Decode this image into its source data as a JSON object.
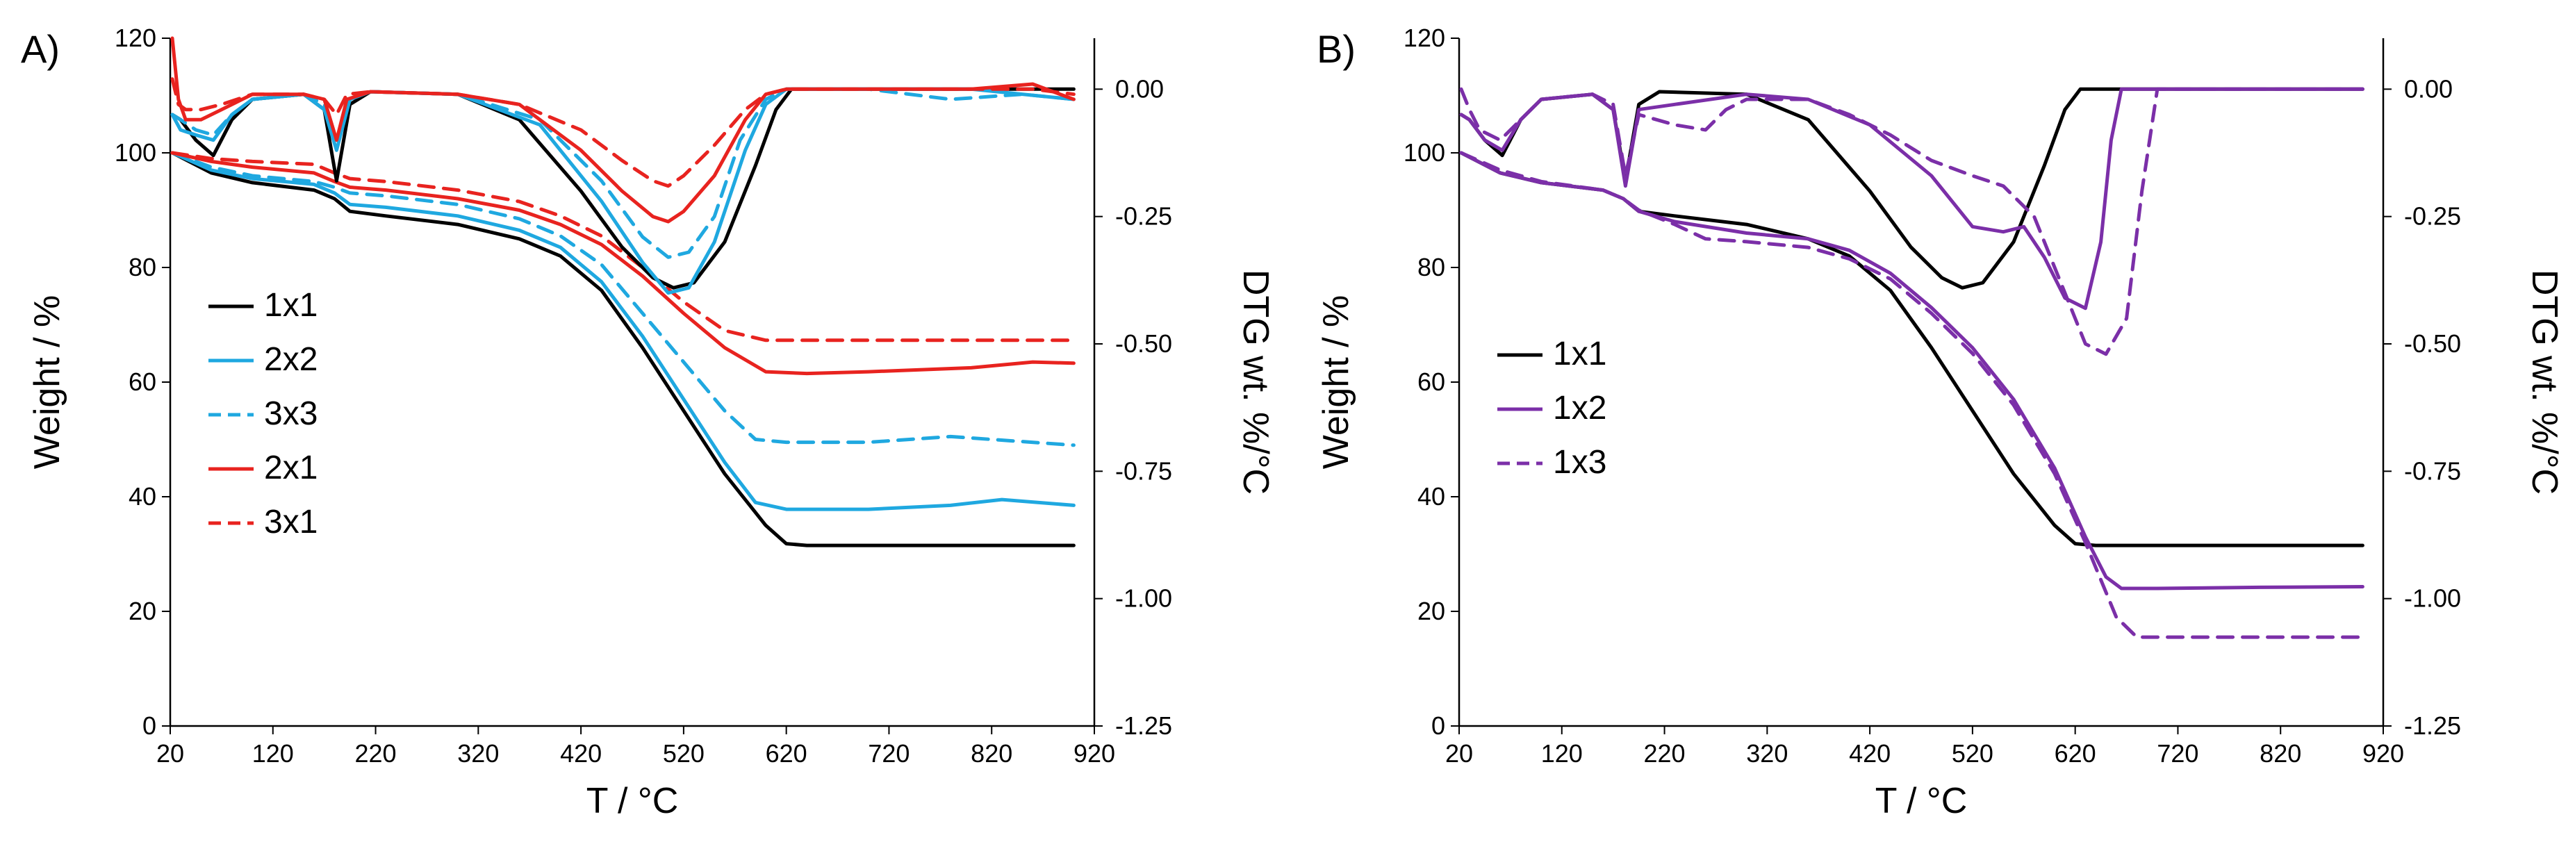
{
  "chart_data": [
    {
      "type": "line",
      "panel_label": "A)",
      "xlabel": "T / °C",
      "ylabel": "Weight / %",
      "y2label": "DTG wt. %/°C",
      "xlim": [
        20,
        920
      ],
      "ylim": [
        0,
        120
      ],
      "y2lim": [
        -1.25,
        0.1
      ],
      "xticks": [
        "20",
        "120",
        "220",
        "320",
        "420",
        "520",
        "620",
        "720",
        "820",
        "920"
      ],
      "yticks": [
        "0",
        "20",
        "40",
        "60",
        "80",
        "100",
        "120"
      ],
      "y2ticks": [
        "-1.25",
        "-1.00",
        "-0.75",
        "-0.50",
        "-0.25",
        "0.00"
      ],
      "legend": [
        "1x1",
        "2x2",
        "3x3",
        "2x1",
        "3x1"
      ],
      "series": [
        {
          "name": "1x1",
          "axis": "weight",
          "color": "#000000",
          "dash": "solid",
          "x": [
            22,
            60,
            100,
            160,
            180,
            195,
            230,
            300,
            360,
            400,
            440,
            480,
            520,
            560,
            600,
            620,
            640,
            700,
            800,
            900
          ],
          "y": [
            100,
            96.5,
            94.8,
            93.5,
            92,
            89.8,
            89,
            87.5,
            85,
            82,
            76,
            66,
            55,
            44,
            35,
            31.8,
            31.5,
            31.5,
            31.5,
            31.5
          ]
        },
        {
          "name": "2x2",
          "axis": "weight",
          "color": "#1fa8e0",
          "dash": "solid",
          "x": [
            22,
            60,
            100,
            160,
            180,
            195,
            230,
            300,
            360,
            400,
            440,
            480,
            520,
            560,
            590,
            620,
            700,
            780,
            830,
            900
          ],
          "y": [
            100,
            97,
            95.5,
            94.5,
            93,
            91,
            90.5,
            89,
            86.5,
            83.5,
            77.5,
            68,
            57,
            46,
            39,
            37.8,
            37.8,
            38.5,
            39.5,
            38.5
          ]
        },
        {
          "name": "3x3",
          "axis": "weight",
          "color": "#1fa8e0",
          "dash": "dash",
          "x": [
            22,
            60,
            100,
            160,
            180,
            195,
            230,
            300,
            360,
            400,
            440,
            480,
            520,
            560,
            590,
            620,
            700,
            780,
            900
          ],
          "y": [
            100,
            97.5,
            96,
            95,
            94,
            93,
            92.5,
            91,
            88.5,
            85.5,
            80.5,
            72,
            63.5,
            55,
            50,
            49.5,
            49.5,
            50.5,
            49
          ]
        },
        {
          "name": "2x1",
          "axis": "weight",
          "color": "#e8231f",
          "dash": "solid",
          "x": [
            22,
            60,
            100,
            160,
            180,
            195,
            230,
            300,
            360,
            400,
            440,
            480,
            520,
            560,
            600,
            640,
            700,
            800,
            860,
            900
          ],
          "y": [
            100,
            98.5,
            97.5,
            96.5,
            95,
            94,
            93.5,
            92,
            90,
            87.5,
            84,
            78.5,
            72,
            66,
            61.8,
            61.5,
            61.8,
            62.5,
            63.5,
            63.3
          ]
        },
        {
          "name": "3x1",
          "axis": "weight",
          "color": "#e8231f",
          "dash": "dash",
          "x": [
            22,
            60,
            100,
            160,
            180,
            195,
            230,
            300,
            360,
            400,
            440,
            480,
            520,
            560,
            600,
            640,
            700,
            800,
            900
          ],
          "y": [
            100,
            99,
            98.5,
            98,
            96.5,
            95.5,
            95,
            93.5,
            91.5,
            89,
            85.5,
            80,
            74,
            69,
            67.3,
            67.3,
            67.3,
            67.3,
            67.3
          ]
        },
        {
          "name": "1x1",
          "axis": "dtg",
          "color": "#000000",
          "dash": "solid",
          "x": [
            22,
            30,
            45,
            62,
            80,
            100,
            150,
            170,
            182,
            195,
            215,
            300,
            360,
            420,
            460,
            490,
            510,
            530,
            560,
            590,
            610,
            625,
            700,
            800,
            900
          ],
          "y": [
            -0.05,
            -0.06,
            -0.1,
            -0.13,
            -0.06,
            -0.02,
            -0.01,
            -0.04,
            -0.18,
            -0.03,
            -0.005,
            -0.01,
            -0.06,
            -0.2,
            -0.31,
            -0.37,
            -0.39,
            -0.38,
            -0.3,
            -0.15,
            -0.04,
            0.0,
            0.0,
            0.0,
            0.0
          ]
        },
        {
          "name": "2x2",
          "axis": "dtg",
          "color": "#1fa8e0",
          "dash": "solid",
          "x": [
            22,
            30,
            45,
            62,
            80,
            100,
            150,
            170,
            182,
            195,
            215,
            300,
            380,
            440,
            480,
            505,
            525,
            550,
            580,
            600,
            620,
            700,
            800,
            900
          ],
          "y": [
            -0.05,
            -0.08,
            -0.09,
            -0.1,
            -0.05,
            -0.02,
            -0.01,
            -0.04,
            -0.12,
            -0.02,
            -0.005,
            -0.01,
            -0.07,
            -0.22,
            -0.34,
            -0.4,
            -0.39,
            -0.3,
            -0.12,
            -0.03,
            0.0,
            0.0,
            0.0,
            -0.02
          ]
        },
        {
          "name": "3x3",
          "axis": "dtg",
          "color": "#1fa8e0",
          "dash": "dash",
          "x": [
            22,
            30,
            45,
            62,
            80,
            100,
            150,
            170,
            182,
            195,
            215,
            300,
            380,
            440,
            480,
            505,
            525,
            550,
            575,
            600,
            620,
            700,
            780,
            850,
            900
          ],
          "y": [
            -0.05,
            -0.06,
            -0.08,
            -0.09,
            -0.05,
            -0.02,
            -0.01,
            -0.03,
            -0.1,
            -0.02,
            -0.005,
            -0.01,
            -0.06,
            -0.18,
            -0.29,
            -0.33,
            -0.32,
            -0.25,
            -0.1,
            -0.02,
            0.0,
            0.0,
            -0.02,
            -0.01,
            -0.02
          ]
        },
        {
          "name": "2x1",
          "axis": "dtg",
          "color": "#e8231f",
          "dash": "solid",
          "x": [
            22,
            28,
            35,
            50,
            70,
            100,
            150,
            170,
            182,
            192,
            215,
            300,
            360,
            420,
            460,
            490,
            505,
            520,
            550,
            580,
            600,
            620,
            700,
            800,
            860,
            900
          ],
          "y": [
            0.1,
            -0.02,
            -0.06,
            -0.06,
            -0.04,
            -0.01,
            -0.01,
            -0.02,
            -0.1,
            -0.02,
            -0.005,
            -0.01,
            -0.03,
            -0.12,
            -0.2,
            -0.25,
            -0.26,
            -0.24,
            -0.17,
            -0.06,
            -0.01,
            0.0,
            0.0,
            0.0,
            0.01,
            -0.02
          ]
        },
        {
          "name": "3x1",
          "axis": "dtg",
          "color": "#e8231f",
          "dash": "dash",
          "x": [
            22,
            28,
            35,
            50,
            70,
            100,
            150,
            170,
            182,
            192,
            215,
            300,
            360,
            420,
            460,
            490,
            505,
            520,
            550,
            580,
            600,
            620,
            700,
            800,
            860,
            900
          ],
          "y": [
            0.02,
            -0.03,
            -0.04,
            -0.04,
            -0.03,
            -0.01,
            -0.01,
            -0.02,
            -0.05,
            -0.01,
            -0.005,
            -0.01,
            -0.03,
            -0.08,
            -0.14,
            -0.18,
            -0.19,
            -0.17,
            -0.11,
            -0.04,
            -0.01,
            0.0,
            0.0,
            0.0,
            0.0,
            -0.01
          ]
        }
      ]
    },
    {
      "type": "line",
      "panel_label": "B)",
      "xlabel": "T / °C",
      "ylabel": "Weight / %",
      "y2label": "DTG wt. %/°C",
      "xlim": [
        20,
        920
      ],
      "ylim": [
        0,
        120
      ],
      "y2lim": [
        -1.25,
        0.1
      ],
      "xticks": [
        "20",
        "120",
        "220",
        "320",
        "420",
        "520",
        "620",
        "720",
        "820",
        "920"
      ],
      "yticks": [
        "0",
        "20",
        "40",
        "60",
        "80",
        "100",
        "120"
      ],
      "y2ticks": [
        "-1.25",
        "-1.00",
        "-0.75",
        "-0.50",
        "-0.25",
        "0.00"
      ],
      "legend": [
        "1x1",
        "1x2",
        "1x3"
      ],
      "series": [
        {
          "name": "1x1",
          "axis": "weight",
          "color": "#000000",
          "dash": "solid",
          "x": [
            22,
            60,
            100,
            160,
            180,
            195,
            230,
            300,
            360,
            400,
            440,
            480,
            520,
            560,
            600,
            620,
            640,
            700,
            800,
            900
          ],
          "y": [
            100,
            96.5,
            94.8,
            93.5,
            92,
            89.8,
            89,
            87.5,
            85,
            82,
            76,
            66,
            55,
            44,
            35,
            31.8,
            31.5,
            31.5,
            31.5,
            31.5
          ]
        },
        {
          "name": "1x2",
          "axis": "weight",
          "color": "#7b2fa8",
          "dash": "solid",
          "x": [
            22,
            60,
            100,
            160,
            180,
            195,
            230,
            300,
            360,
            400,
            440,
            480,
            520,
            560,
            600,
            630,
            650,
            665,
            700,
            800,
            900
          ],
          "y": [
            100,
            96.5,
            94.8,
            93.5,
            92,
            89.8,
            88,
            86,
            85,
            83,
            79,
            73,
            66,
            57,
            45,
            33,
            26,
            24,
            24,
            24.2,
            24.3
          ]
        },
        {
          "name": "1x3",
          "axis": "weight",
          "color": "#7b2fa8",
          "dash": "dash",
          "x": [
            22,
            60,
            100,
            160,
            180,
            195,
            230,
            260,
            300,
            360,
            400,
            440,
            480,
            520,
            560,
            600,
            630,
            660,
            680,
            700,
            800,
            900
          ],
          "y": [
            100,
            97,
            95,
            93.5,
            92,
            90,
            87.5,
            85,
            84.5,
            83.5,
            81.5,
            78,
            72,
            65,
            56,
            44,
            32,
            19,
            15.5,
            15.5,
            15.5,
            15.5
          ]
        },
        {
          "name": "1x1",
          "axis": "dtg",
          "color": "#000000",
          "dash": "solid",
          "x": [
            22,
            30,
            45,
            62,
            80,
            100,
            150,
            170,
            182,
            195,
            215,
            300,
            360,
            420,
            460,
            490,
            510,
            530,
            560,
            590,
            610,
            625,
            700,
            800,
            900
          ],
          "y": [
            -0.05,
            -0.06,
            -0.1,
            -0.13,
            -0.06,
            -0.02,
            -0.01,
            -0.04,
            -0.18,
            -0.03,
            -0.005,
            -0.01,
            -0.06,
            -0.2,
            -0.31,
            -0.37,
            -0.39,
            -0.38,
            -0.3,
            -0.15,
            -0.04,
            0.0,
            0.0,
            0.0,
            0.0
          ]
        },
        {
          "name": "1x2",
          "axis": "dtg",
          "color": "#7b2fa8",
          "dash": "solid",
          "x": [
            22,
            30,
            45,
            62,
            80,
            100,
            150,
            170,
            182,
            195,
            230,
            300,
            360,
            420,
            480,
            520,
            550,
            570,
            590,
            610,
            630,
            645,
            655,
            665,
            700,
            900
          ],
          "y": [
            -0.05,
            -0.06,
            -0.1,
            -0.12,
            -0.06,
            -0.02,
            -0.01,
            -0.04,
            -0.19,
            -0.04,
            -0.03,
            -0.01,
            -0.02,
            -0.07,
            -0.17,
            -0.27,
            -0.28,
            -0.27,
            -0.33,
            -0.41,
            -0.43,
            -0.3,
            -0.1,
            0.0,
            0.0,
            0.0
          ]
        },
        {
          "name": "1x3",
          "axis": "dtg",
          "color": "#7b2fa8",
          "dash": "dash",
          "x": [
            22,
            30,
            40,
            60,
            80,
            100,
            150,
            170,
            182,
            195,
            230,
            260,
            280,
            300,
            360,
            400,
            440,
            480,
            520,
            550,
            580,
            610,
            630,
            650,
            670,
            685,
            700,
            900
          ],
          "y": [
            0.0,
            -0.04,
            -0.08,
            -0.1,
            -0.06,
            -0.02,
            -0.01,
            -0.03,
            -0.17,
            -0.05,
            -0.07,
            -0.08,
            -0.04,
            -0.02,
            -0.02,
            -0.05,
            -0.09,
            -0.14,
            -0.17,
            -0.19,
            -0.25,
            -0.4,
            -0.5,
            -0.52,
            -0.45,
            -0.2,
            0.0,
            0.0
          ]
        }
      ]
    }
  ]
}
